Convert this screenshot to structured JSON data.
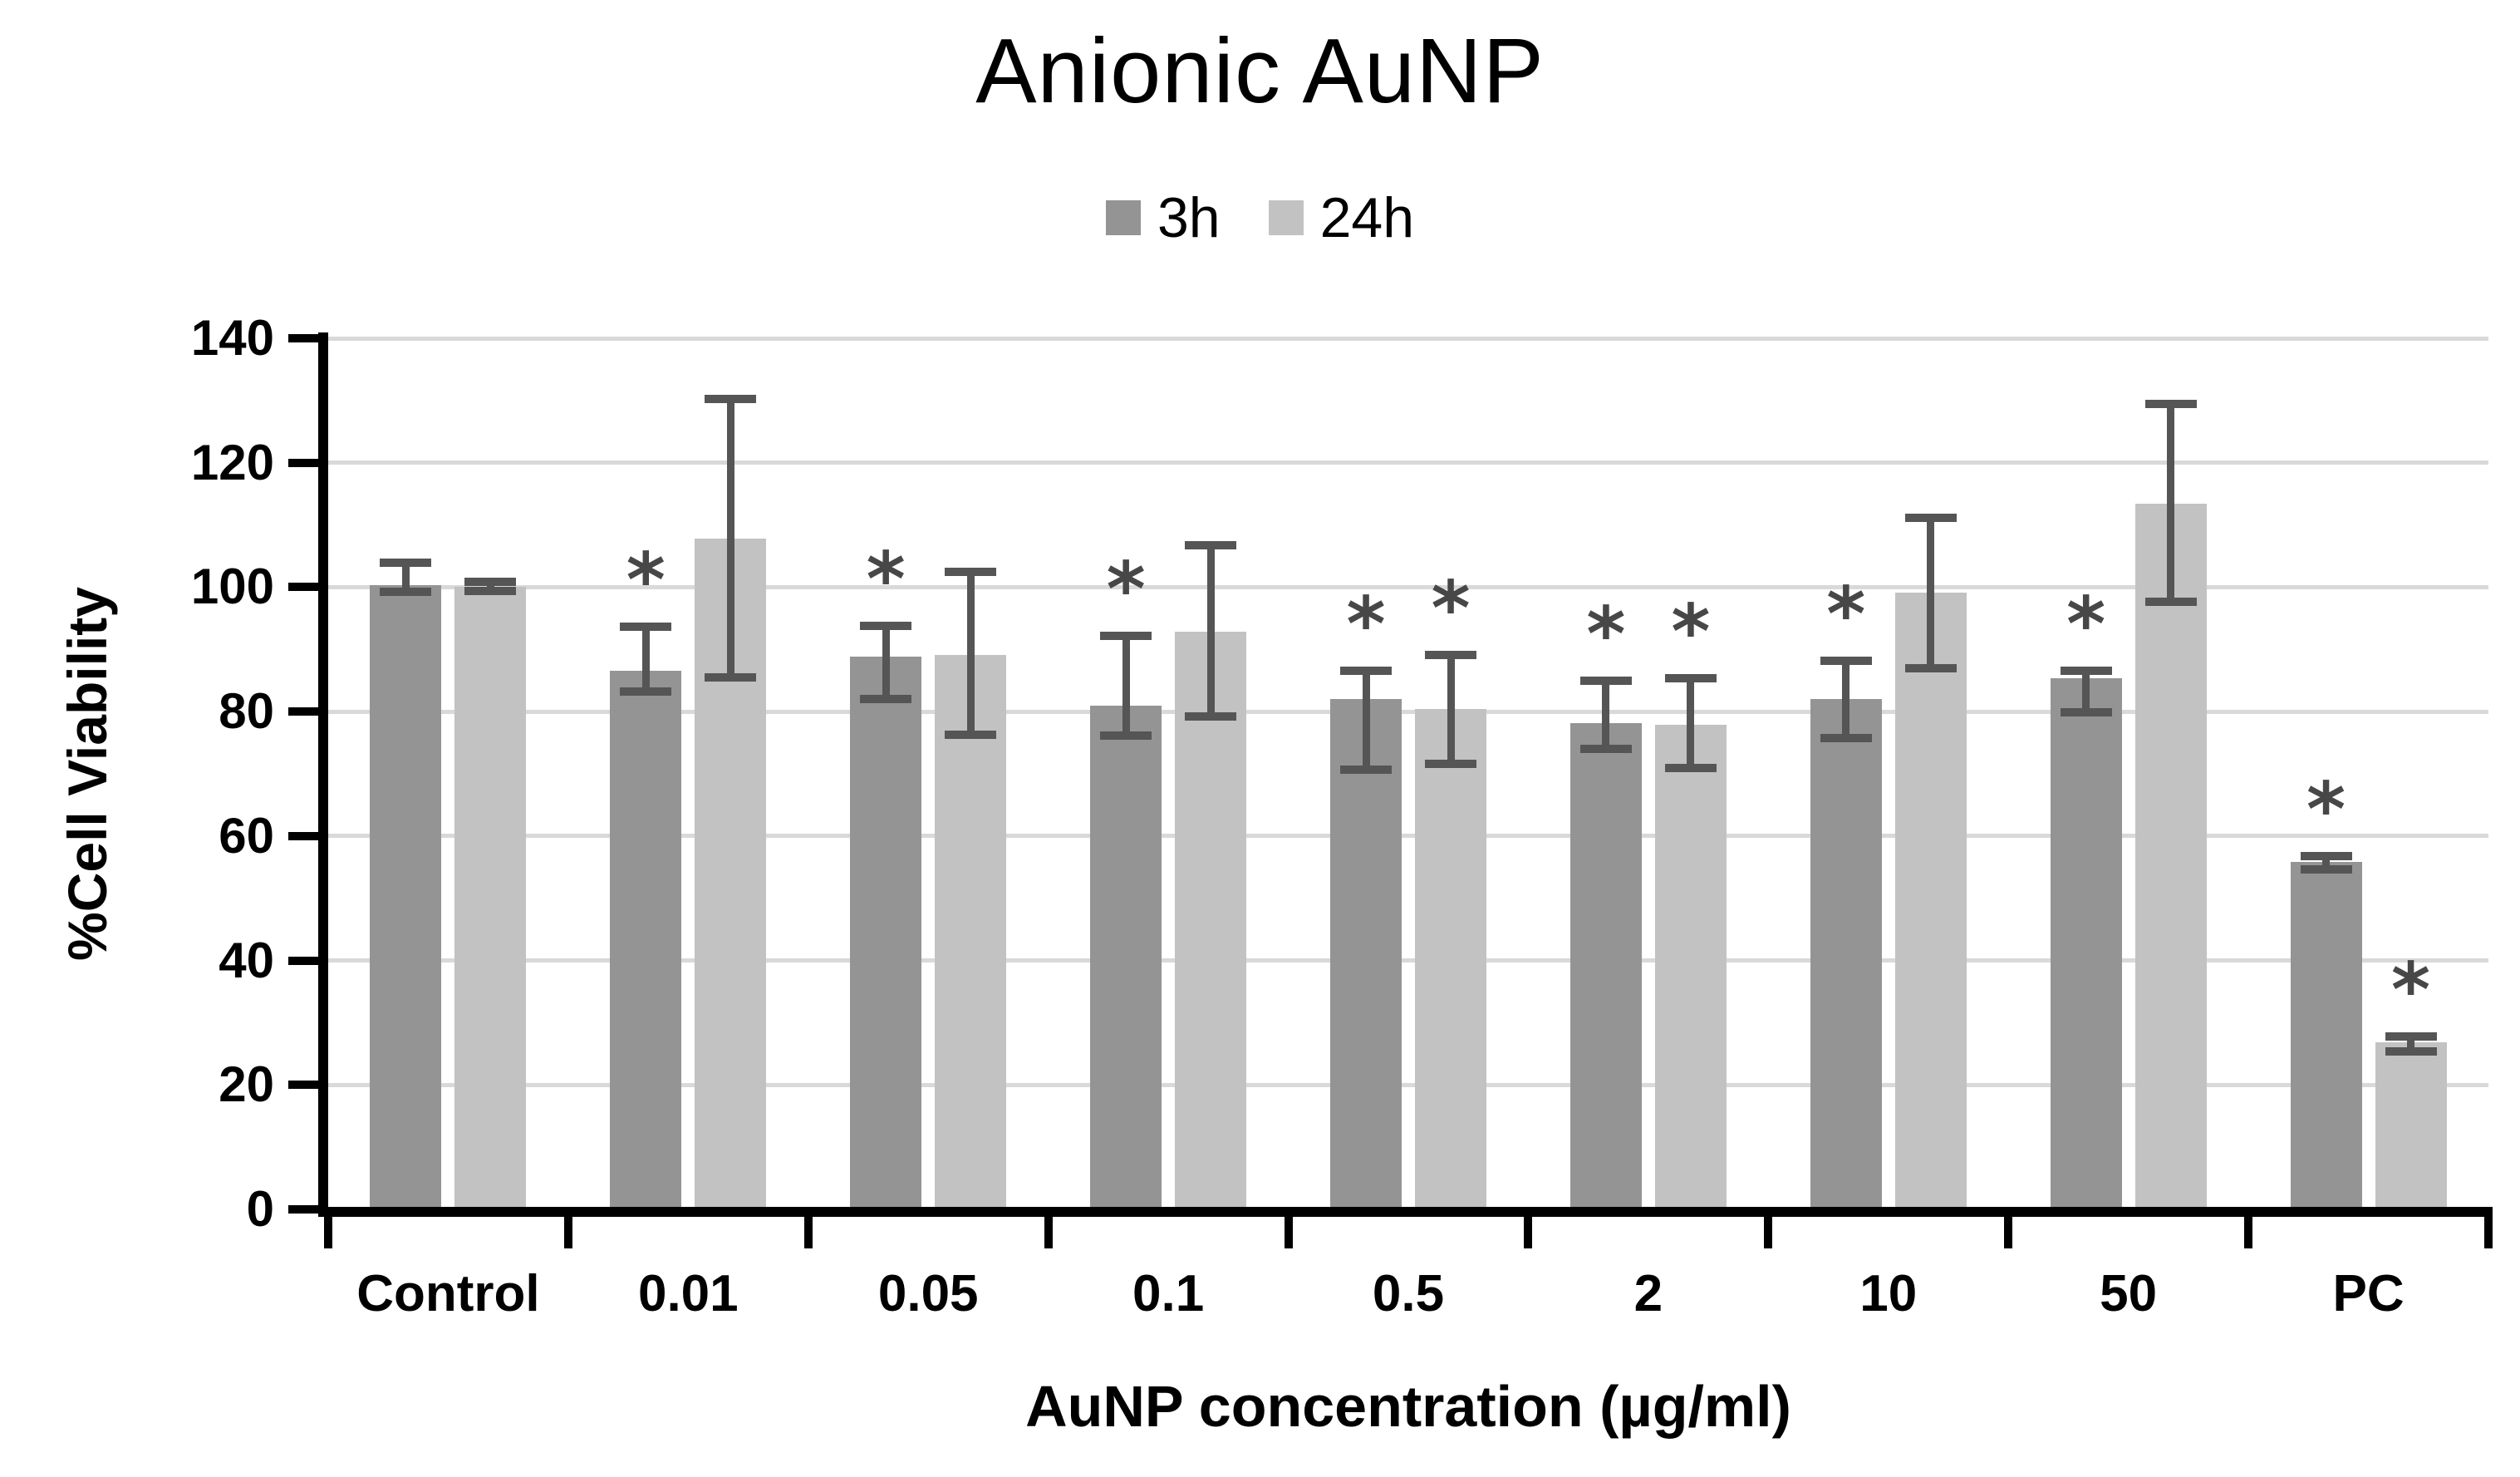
{
  "page": {
    "background": "#ffffff"
  },
  "chart_data": {
    "type": "bar",
    "title": "Anionic AuNP",
    "xlabel": "AuNP concentration (µg/ml)",
    "ylabel": "%Cell Viability",
    "ylim": [
      0,
      140
    ],
    "yticks": [
      0,
      20,
      40,
      60,
      80,
      100,
      120,
      140
    ],
    "grid": true,
    "gridline_color": "#d9d9d9",
    "axis_color": "#000000",
    "error_bar_color": "#555555",
    "significance_marker": "*",
    "significance_color": "#474747",
    "legend_position": "top-center",
    "categories": [
      "Control",
      "0.01",
      "0.05",
      "0.1",
      "0.5",
      "2",
      "10",
      "50",
      "PC"
    ],
    "series": [
      {
        "name": "3h",
        "color": "#949494",
        "values": [
          100.3,
          86.5,
          88.8,
          80.9,
          82.0,
          78.1,
          82.0,
          85.3,
          55.8
        ],
        "err_hi": [
          103.9,
          93.7,
          93.8,
          92.2,
          86.5,
          85.0,
          88.2,
          86.5,
          56.8
        ],
        "err_lo": [
          99.3,
          83.2,
          82.0,
          76.2,
          70.7,
          74.0,
          75.7,
          79.9,
          54.6
        ],
        "significant": [
          false,
          true,
          true,
          true,
          true,
          true,
          true,
          true,
          true
        ]
      },
      {
        "name": "24h",
        "color": "#c2c2c2",
        "values": [
          100.0,
          107.8,
          89.1,
          92.8,
          80.4,
          77.9,
          99.1,
          113.4,
          26.9
        ],
        "err_hi": [
          100.8,
          130.3,
          102.4,
          106.8,
          89.1,
          85.3,
          111.1,
          129.5,
          27.8
        ],
        "err_lo": [
          99.4,
          85.5,
          76.3,
          79.2,
          71.6,
          71.0,
          86.9,
          97.6,
          25.4
        ],
        "significant": [
          false,
          false,
          false,
          false,
          true,
          true,
          false,
          false,
          true
        ]
      }
    ]
  }
}
